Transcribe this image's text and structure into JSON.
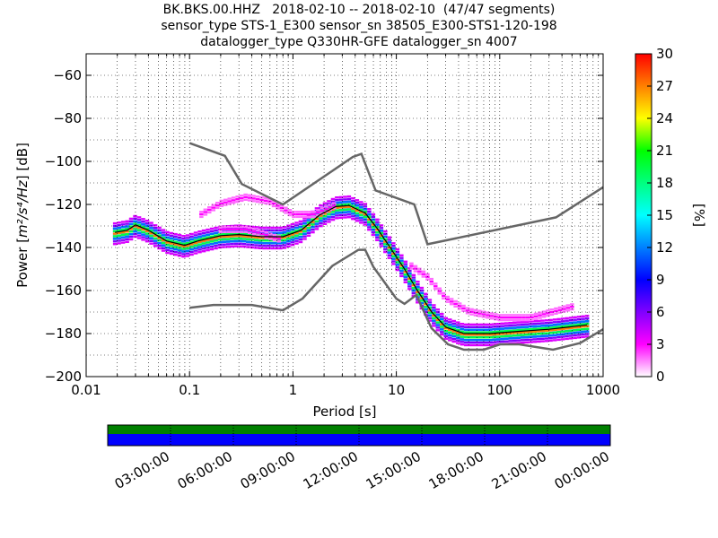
{
  "title_lines": [
    "BK.BKS.00.HHZ   2018-02-10 -- 2018-02-10  (47/47 segments)",
    "sensor_type STS-1_E300 sensor_sn 38505_E300-STS1-120-198",
    "datalogger_type Q330HR-GFE datalogger_sn 4007"
  ],
  "chart_data": {
    "type": "heatmap",
    "title": "BK.BKS.00.HHZ   2018-02-10 -- 2018-02-10  (47/47 segments)",
    "xlabel": "Period [s]",
    "ylabel_prefix": "Power [",
    "ylabel_math": "m²/s⁴/Hz",
    "ylabel_suffix": "] [dB]",
    "x_scale": "log",
    "xlim": [
      0.01,
      1000
    ],
    "ylim": [
      -200,
      -50
    ],
    "x_ticks": [
      {
        "value": 0.01,
        "label": "0.01"
      },
      {
        "value": 0.1,
        "label": "0.1"
      },
      {
        "value": 1,
        "label": "1"
      },
      {
        "value": 10,
        "label": "10"
      },
      {
        "value": 100,
        "label": "100"
      },
      {
        "value": 1000,
        "label": "1000"
      }
    ],
    "y_ticks": [
      {
        "value": -60,
        "label": "−60"
      },
      {
        "value": -80,
        "label": "−80"
      },
      {
        "value": -100,
        "label": "−100"
      },
      {
        "value": -120,
        "label": "−120"
      },
      {
        "value": -140,
        "label": "−140"
      },
      {
        "value": -160,
        "label": "−160"
      },
      {
        "value": -180,
        "label": "−180"
      },
      {
        "value": -200,
        "label": "−200"
      }
    ],
    "grid": "dotted",
    "colorbar": {
      "label": "[%]",
      "range": [
        0,
        30
      ],
      "ticks": [
        {
          "value": 0,
          "label": "0"
        },
        {
          "value": 3,
          "label": "3"
        },
        {
          "value": 6,
          "label": "6"
        },
        {
          "value": 9,
          "label": "9"
        },
        {
          "value": 12,
          "label": "12"
        },
        {
          "value": 15,
          "label": "15"
        },
        {
          "value": 18,
          "label": "18"
        },
        {
          "value": 21,
          "label": "21"
        },
        {
          "value": 24,
          "label": "24"
        },
        {
          "value": 27,
          "label": "27"
        },
        {
          "value": 30,
          "label": "30"
        }
      ],
      "colors": [
        "#ffffff",
        "#ff00ff",
        "#8000ff",
        "#0000ff",
        "#0080ff",
        "#00ffff",
        "#00ff80",
        "#00ff00",
        "#ffff00",
        "#ff8000",
        "#ff0000"
      ]
    },
    "nhnm": [
      [
        0.1,
        -168
      ],
      [
        0.17,
        -166.7
      ],
      [
        0.4,
        -166.7
      ],
      [
        0.8,
        -169.2
      ],
      [
        1.24,
        -163.7
      ],
      [
        2.4,
        -148.6
      ],
      [
        4.3,
        -141.1
      ],
      [
        5,
        -141.1
      ],
      [
        6,
        -149
      ],
      [
        10,
        -163.8
      ],
      [
        12,
        -166.2
      ],
      [
        15.6,
        -162.1
      ],
      [
        21.9,
        -177.5
      ],
      [
        31.6,
        -185
      ],
      [
        45,
        -187.5
      ],
      [
        70,
        -187.5
      ],
      [
        101,
        -185
      ],
      [
        154,
        -185
      ],
      [
        328,
        -187.5
      ],
      [
        600,
        -184.4
      ],
      [
        1000,
        -178
      ]
    ],
    "nlnm": [
      [
        0.1,
        -91.5
      ],
      [
        0.22,
        -97.4
      ],
      [
        0.32,
        -110.5
      ],
      [
        0.8,
        -120
      ],
      [
        3.8,
        -97.9
      ],
      [
        4.6,
        -96.5
      ],
      [
        6.3,
        -113.5
      ],
      [
        14.9,
        -120
      ],
      [
        20,
        -138.5
      ],
      [
        350,
        -126
      ],
      [
        1000,
        -112
      ]
    ],
    "density_bands": [
      {
        "center": [
          [
            0.019,
            -133
          ],
          [
            0.025,
            -132
          ],
          [
            0.03,
            -129.5
          ],
          [
            0.04,
            -132
          ],
          [
            0.06,
            -137
          ],
          [
            0.09,
            -139
          ],
          [
            0.12,
            -137
          ],
          [
            0.2,
            -134.5
          ],
          [
            0.3,
            -134
          ],
          [
            0.5,
            -135
          ],
          [
            0.8,
            -135
          ],
          [
            1.2,
            -132
          ],
          [
            1.8,
            -125
          ],
          [
            2.6,
            -121
          ],
          [
            3.5,
            -120.5
          ],
          [
            5,
            -124
          ],
          [
            6.5,
            -131
          ],
          [
            9,
            -141
          ],
          [
            12,
            -150
          ],
          [
            16,
            -160
          ],
          [
            22,
            -170
          ],
          [
            30,
            -177
          ],
          [
            45,
            -180
          ],
          [
            80,
            -180
          ],
          [
            150,
            -179
          ],
          [
            300,
            -178
          ],
          [
            700,
            -176
          ]
        ],
        "spread": 4,
        "value": 12
      },
      {
        "center": [
          [
            0.019,
            -133
          ],
          [
            0.025,
            -132
          ],
          [
            0.03,
            -129.5
          ],
          [
            0.04,
            -132
          ],
          [
            0.06,
            -137
          ],
          [
            0.09,
            -139
          ],
          [
            0.12,
            -137
          ],
          [
            0.2,
            -134.5
          ],
          [
            0.3,
            -134
          ],
          [
            0.5,
            -135
          ],
          [
            0.8,
            -135
          ],
          [
            1.2,
            -132
          ],
          [
            1.8,
            -125
          ],
          [
            2.6,
            -121
          ],
          [
            3.5,
            -120.5
          ],
          [
            5,
            -124
          ],
          [
            6.5,
            -131
          ],
          [
            9,
            -141
          ],
          [
            12,
            -150
          ],
          [
            16,
            -160
          ],
          [
            22,
            -170
          ],
          [
            30,
            -177
          ],
          [
            45,
            -180
          ],
          [
            80,
            -180
          ],
          [
            150,
            -179
          ],
          [
            300,
            -178
          ],
          [
            700,
            -176
          ]
        ],
        "spread": 2,
        "value": 27
      },
      {
        "center": [
          [
            0.13,
            -124
          ],
          [
            0.2,
            -119
          ],
          [
            0.35,
            -116
          ],
          [
            0.6,
            -118
          ],
          [
            1,
            -124
          ],
          [
            1.6,
            -124
          ],
          [
            2.5,
            -120
          ]
        ],
        "spread": 1,
        "value": 3
      },
      {
        "center": [
          [
            14,
            -148
          ],
          [
            20,
            -153
          ],
          [
            30,
            -163
          ],
          [
            50,
            -169
          ],
          [
            100,
            -172
          ],
          [
            200,
            -172
          ],
          [
            500,
            -167
          ]
        ],
        "spread": 1,
        "value": 3
      },
      {
        "center": [
          [
            0.2,
            -131
          ],
          [
            0.35,
            -131
          ],
          [
            0.5,
            -133
          ],
          [
            0.8,
            -136
          ]
        ],
        "spread": 1,
        "value": 3
      }
    ],
    "median": [
      [
        0.019,
        -133
      ],
      [
        0.025,
        -132
      ],
      [
        0.03,
        -129.5
      ],
      [
        0.04,
        -132
      ],
      [
        0.06,
        -137
      ],
      [
        0.09,
        -139
      ],
      [
        0.12,
        -137
      ],
      [
        0.2,
        -134.5
      ],
      [
        0.3,
        -134
      ],
      [
        0.5,
        -135
      ],
      [
        0.8,
        -135
      ],
      [
        1.2,
        -132
      ],
      [
        1.8,
        -125
      ],
      [
        2.6,
        -121
      ],
      [
        3.5,
        -120.5
      ],
      [
        5,
        -124
      ],
      [
        6.5,
        -131
      ],
      [
        9,
        -141
      ],
      [
        12,
        -150
      ],
      [
        16,
        -160
      ],
      [
        22,
        -170
      ],
      [
        30,
        -177
      ],
      [
        45,
        -180
      ],
      [
        80,
        -180
      ],
      [
        150,
        -179
      ],
      [
        300,
        -178
      ],
      [
        700,
        -176
      ]
    ]
  },
  "timeline": {
    "tick_labels": [
      "03:00:00",
      "06:00:00",
      "09:00:00",
      "12:00:00",
      "15:00:00",
      "18:00:00",
      "21:00:00",
      "00:00:00"
    ],
    "range_hours": [
      0,
      24
    ],
    "tick_hours": [
      3,
      6,
      9,
      12,
      15,
      18,
      21,
      24
    ],
    "colors": {
      "upper": "#008000",
      "lower": "#0000ff"
    }
  }
}
